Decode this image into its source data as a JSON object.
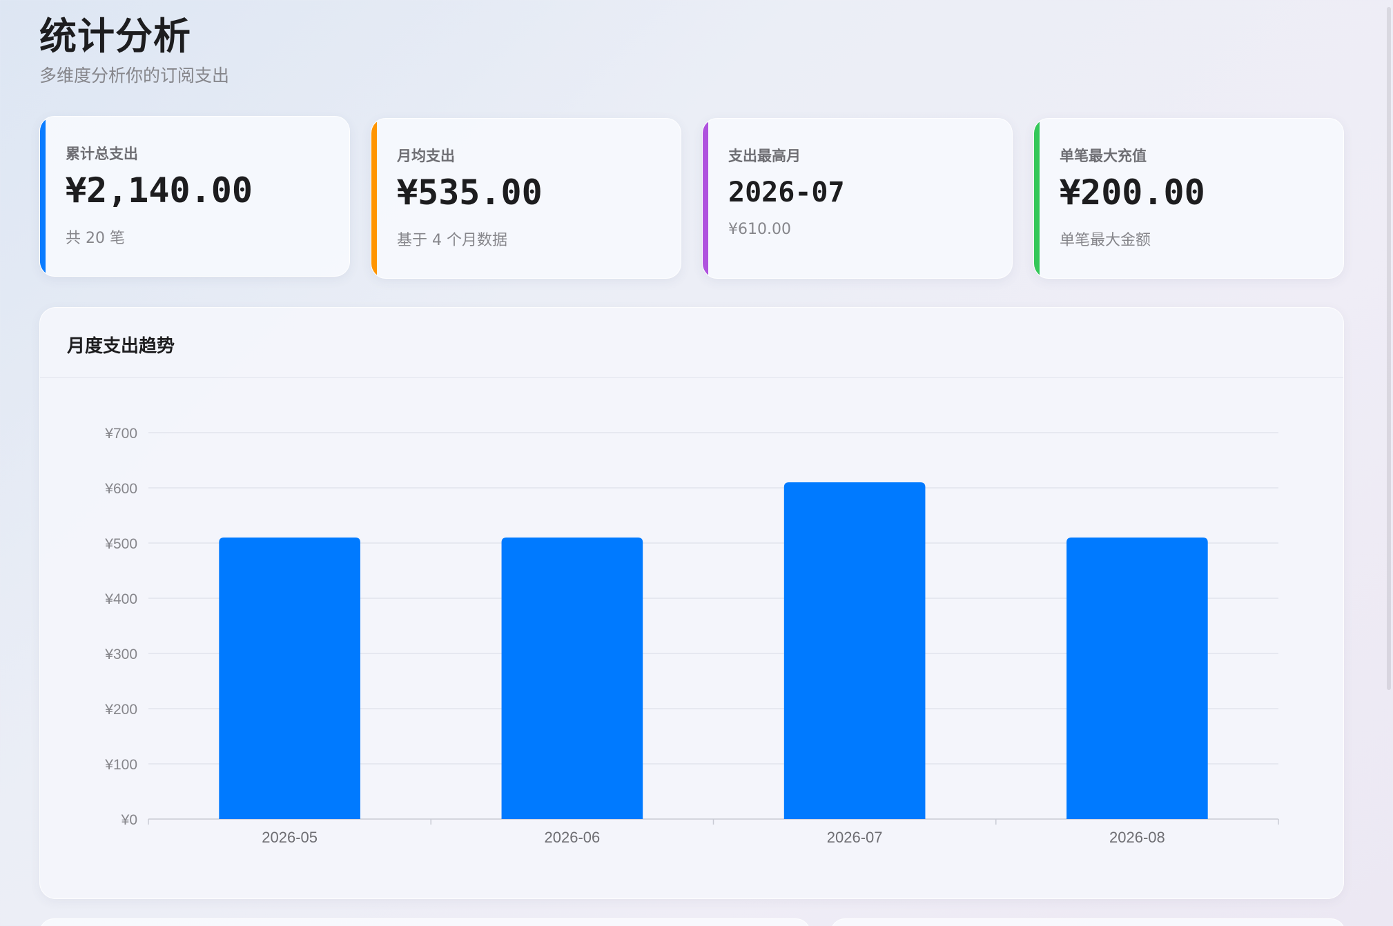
{
  "header": {
    "title": "统计分析",
    "subtitle": "多维度分析你的订阅支出"
  },
  "stats": [
    {
      "label": "累计总支出",
      "value": "¥2,140.00",
      "note": "共 20 笔",
      "accent": "#0a7cff"
    },
    {
      "label": "月均支出",
      "value": "¥535.00",
      "note": "基于 4 个月数据",
      "accent": "#ff9500"
    },
    {
      "label": "支出最高月",
      "value": "2026-07",
      "note": "¥610.00",
      "accent": "#af52de"
    },
    {
      "label": "单笔最大充值",
      "value": "¥200.00",
      "note": "单笔最大金额",
      "accent": "#34c759"
    }
  ],
  "chart_section": {
    "title": "月度支出趋势"
  },
  "chart_data": {
    "type": "bar",
    "categories": [
      "2026-05",
      "2026-06",
      "2026-07",
      "2026-08"
    ],
    "values": [
      510,
      510,
      610,
      510
    ],
    "ylim": [
      0,
      700
    ],
    "yticks": [
      0,
      100,
      200,
      300,
      400,
      500,
      600,
      700
    ],
    "ytick_labels": [
      "¥0",
      "¥100",
      "¥200",
      "¥300",
      "¥400",
      "¥500",
      "¥600",
      "¥700"
    ],
    "bar_color": "#007aff",
    "grid": true
  }
}
